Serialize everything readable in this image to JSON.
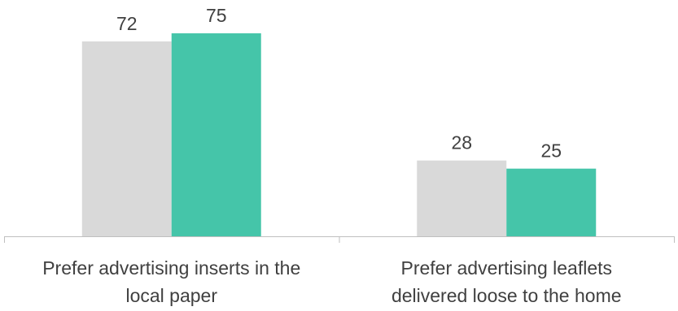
{
  "chart_data": {
    "type": "bar",
    "categories": [
      [
        "Prefer advertising inserts in the",
        "local paper"
      ],
      [
        "Prefer advertising leaflets",
        "delivered loose to the home"
      ]
    ],
    "series": [
      {
        "values": [
          72,
          28
        ],
        "color": "#d9d9d9"
      },
      {
        "values": [
          75,
          25
        ],
        "color": "#45c5a9"
      }
    ],
    "ylim": [
      0,
      100
    ],
    "grid": false,
    "legend": "none",
    "axis_color": "#bfbfbf"
  }
}
